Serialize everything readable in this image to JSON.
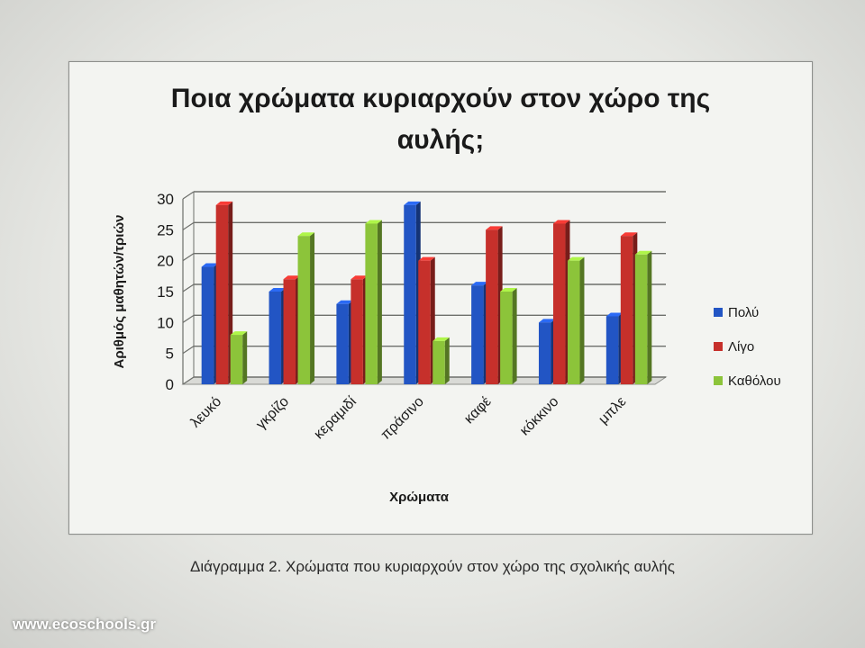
{
  "caption": "Διάγραμμα 2. Χρώματα  που κυριαρχούν στον χώρο της σχολικής αυλής",
  "watermark": "www.ecoschools.gr",
  "chart_data": {
    "type": "bar",
    "title": "Ποια χρώματα κυριαρχούν στον χώρο της αυλής;",
    "xlabel": "Χρώματα",
    "ylabel": "Αριθμός μαθητών/τριών",
    "categories": [
      "λευκό",
      "γκρίζο",
      "κεραμιδί",
      "πράσινο",
      "καφέ",
      "κόκκινο",
      "μπλε"
    ],
    "series": [
      {
        "name": "Πολύ",
        "color": "#2255c4",
        "values": [
          19,
          15,
          13,
          29,
          16,
          10,
          11
        ]
      },
      {
        "name": "Λίγο",
        "color": "#c6302b",
        "values": [
          29,
          17,
          17,
          20,
          25,
          26,
          24
        ]
      },
      {
        "name": "Καθόλου",
        "color": "#8cc43a",
        "values": [
          8,
          24,
          26,
          7,
          15,
          20,
          21
        ]
      }
    ],
    "ylim": [
      0,
      30
    ],
    "yticks": [
      0,
      5,
      10,
      15,
      20,
      25,
      30
    ],
    "grid": true,
    "legend": "right",
    "style": "3d-bar"
  }
}
